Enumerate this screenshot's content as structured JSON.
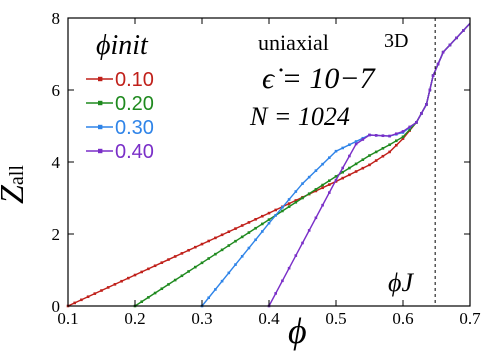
{
  "chart_data": {
    "type": "line",
    "xlabel": "ϕ",
    "ylabel": {
      "main": "Z",
      "sub": "all"
    },
    "xlim": [
      0.1,
      0.7
    ],
    "ylim": [
      0,
      8
    ],
    "x_ticks": [
      "0.1",
      "0.2",
      "0.3",
      "0.4",
      "0.5",
      "0.6",
      "0.7"
    ],
    "y_ticks": [
      "0",
      "2",
      "4",
      "6",
      "8"
    ],
    "grid": false,
    "legend": {
      "title": "ϕinit",
      "placement": "top-left"
    },
    "series": [
      {
        "name": "0.10",
        "color": "#c0201a",
        "points": [
          [
            0.1,
            0.0
          ],
          [
            0.15,
            0.43
          ],
          [
            0.2,
            0.86
          ],
          [
            0.25,
            1.29
          ],
          [
            0.3,
            1.72
          ],
          [
            0.35,
            2.15
          ],
          [
            0.4,
            2.58
          ],
          [
            0.45,
            3.02
          ],
          [
            0.5,
            3.46
          ],
          [
            0.55,
            3.92
          ],
          [
            0.58,
            4.28
          ],
          [
            0.6,
            4.65
          ],
          [
            0.62,
            5.1
          ],
          [
            0.635,
            5.6
          ],
          [
            0.645,
            6.4
          ],
          [
            0.66,
            7.05
          ],
          [
            0.68,
            7.45
          ],
          [
            0.7,
            7.85
          ]
        ]
      },
      {
        "name": "0.20",
        "color": "#1f8a1f",
        "points": [
          [
            0.2,
            0.0
          ],
          [
            0.25,
            0.6
          ],
          [
            0.3,
            1.2
          ],
          [
            0.35,
            1.8
          ],
          [
            0.4,
            2.4
          ],
          [
            0.45,
            3.0
          ],
          [
            0.5,
            3.6
          ],
          [
            0.55,
            4.18
          ],
          [
            0.58,
            4.48
          ],
          [
            0.6,
            4.7
          ],
          [
            0.62,
            5.1
          ],
          [
            0.635,
            5.6
          ],
          [
            0.645,
            6.4
          ],
          [
            0.66,
            7.05
          ],
          [
            0.68,
            7.45
          ],
          [
            0.7,
            7.85
          ]
        ]
      },
      {
        "name": "0.30",
        "color": "#2f84e8",
        "points": [
          [
            0.3,
            0.0
          ],
          [
            0.35,
            1.15
          ],
          [
            0.4,
            2.3
          ],
          [
            0.45,
            3.4
          ],
          [
            0.5,
            4.3
          ],
          [
            0.55,
            4.75
          ],
          [
            0.58,
            4.72
          ],
          [
            0.6,
            4.82
          ],
          [
            0.62,
            5.1
          ],
          [
            0.635,
            5.6
          ],
          [
            0.645,
            6.4
          ],
          [
            0.66,
            7.05
          ],
          [
            0.68,
            7.45
          ],
          [
            0.7,
            7.85
          ]
        ]
      },
      {
        "name": "0.40",
        "color": "#7a2fc8",
        "points": [
          [
            0.4,
            0.0
          ],
          [
            0.45,
            1.75
          ],
          [
            0.5,
            3.5
          ],
          [
            0.53,
            4.5
          ],
          [
            0.55,
            4.75
          ],
          [
            0.58,
            4.72
          ],
          [
            0.6,
            4.85
          ],
          [
            0.62,
            5.1
          ],
          [
            0.635,
            5.6
          ],
          [
            0.645,
            6.4
          ],
          [
            0.66,
            7.05
          ],
          [
            0.68,
            7.45
          ],
          [
            0.7,
            7.85
          ]
        ]
      }
    ],
    "annotations": {
      "phi_J": {
        "label": "ϕJ",
        "x": 0.648
      },
      "mode": "uniaxial",
      "dim": "3D",
      "rate": "ϵ̇ = 10−7",
      "N": "N = 1024"
    }
  }
}
